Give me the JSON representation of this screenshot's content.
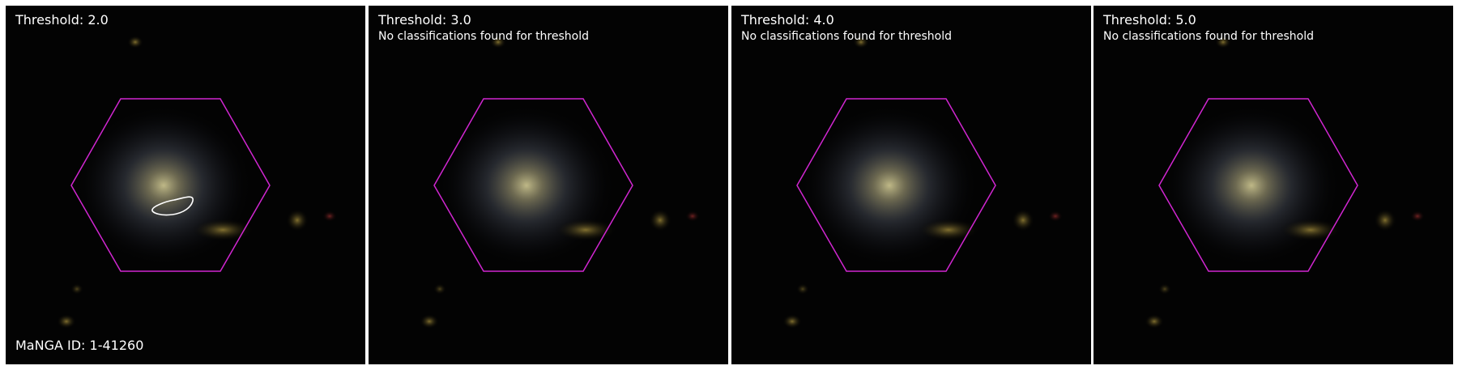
{
  "panels": [
    {
      "title": "Threshold: 2.0",
      "note": "",
      "footer": "MaNGA ID: 1-41260",
      "has_contour": true
    },
    {
      "title": "Threshold: 3.0",
      "note": "No classifications found for threshold",
      "footer": "",
      "has_contour": false
    },
    {
      "title": "Threshold: 4.0",
      "note": "No classifications found for threshold",
      "footer": "",
      "has_contour": false
    },
    {
      "title": "Threshold: 5.0",
      "note": "No classifications found for threshold",
      "footer": "",
      "has_contour": false
    }
  ],
  "colors": {
    "hexagon": "#d126d1",
    "contour": "#ffffff",
    "background": "#030303"
  }
}
